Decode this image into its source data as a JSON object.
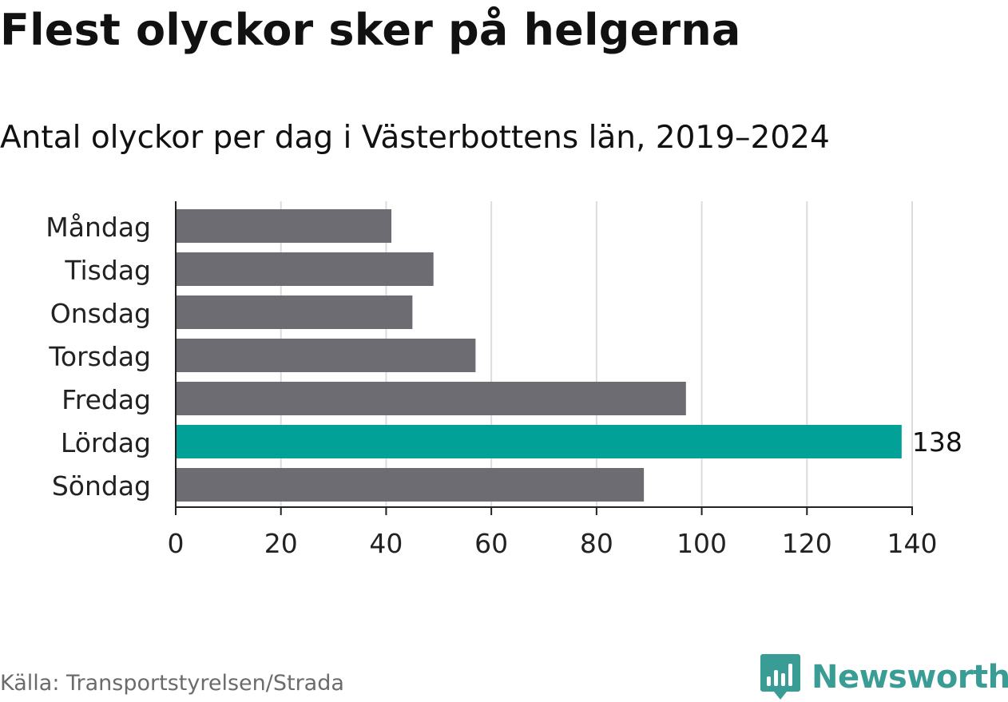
{
  "title": "Flest olyckor sker på helgerna",
  "subtitle": "Antal olyckor per dag i Västerbottens län, 2019–2024",
  "source": "Källa: Transportstyrelsen/Strada",
  "logo": {
    "text": "Newsworthy",
    "icon": "newsworthy-logo-icon"
  },
  "colors": {
    "bar_default": "#6d6c72",
    "bar_highlight": "#02a198",
    "grid": "#dcdcdc",
    "axis": "#222222",
    "logo": "#3a9d95"
  },
  "chart_data": {
    "type": "bar",
    "orientation": "horizontal",
    "categories": [
      "Måndag",
      "Tisdag",
      "Onsdag",
      "Torsdag",
      "Fredag",
      "Lördag",
      "Söndag"
    ],
    "values": [
      41,
      49,
      45,
      57,
      97,
      138,
      89
    ],
    "highlight": "Lördag",
    "data_labels": [
      {
        "category": "Lördag",
        "value": "138"
      }
    ],
    "xlim": [
      0,
      140
    ],
    "xticks": [
      "0",
      "20",
      "40",
      "60",
      "80",
      "100",
      "120",
      "140"
    ],
    "grid": true,
    "xlabel": "",
    "ylabel": ""
  }
}
